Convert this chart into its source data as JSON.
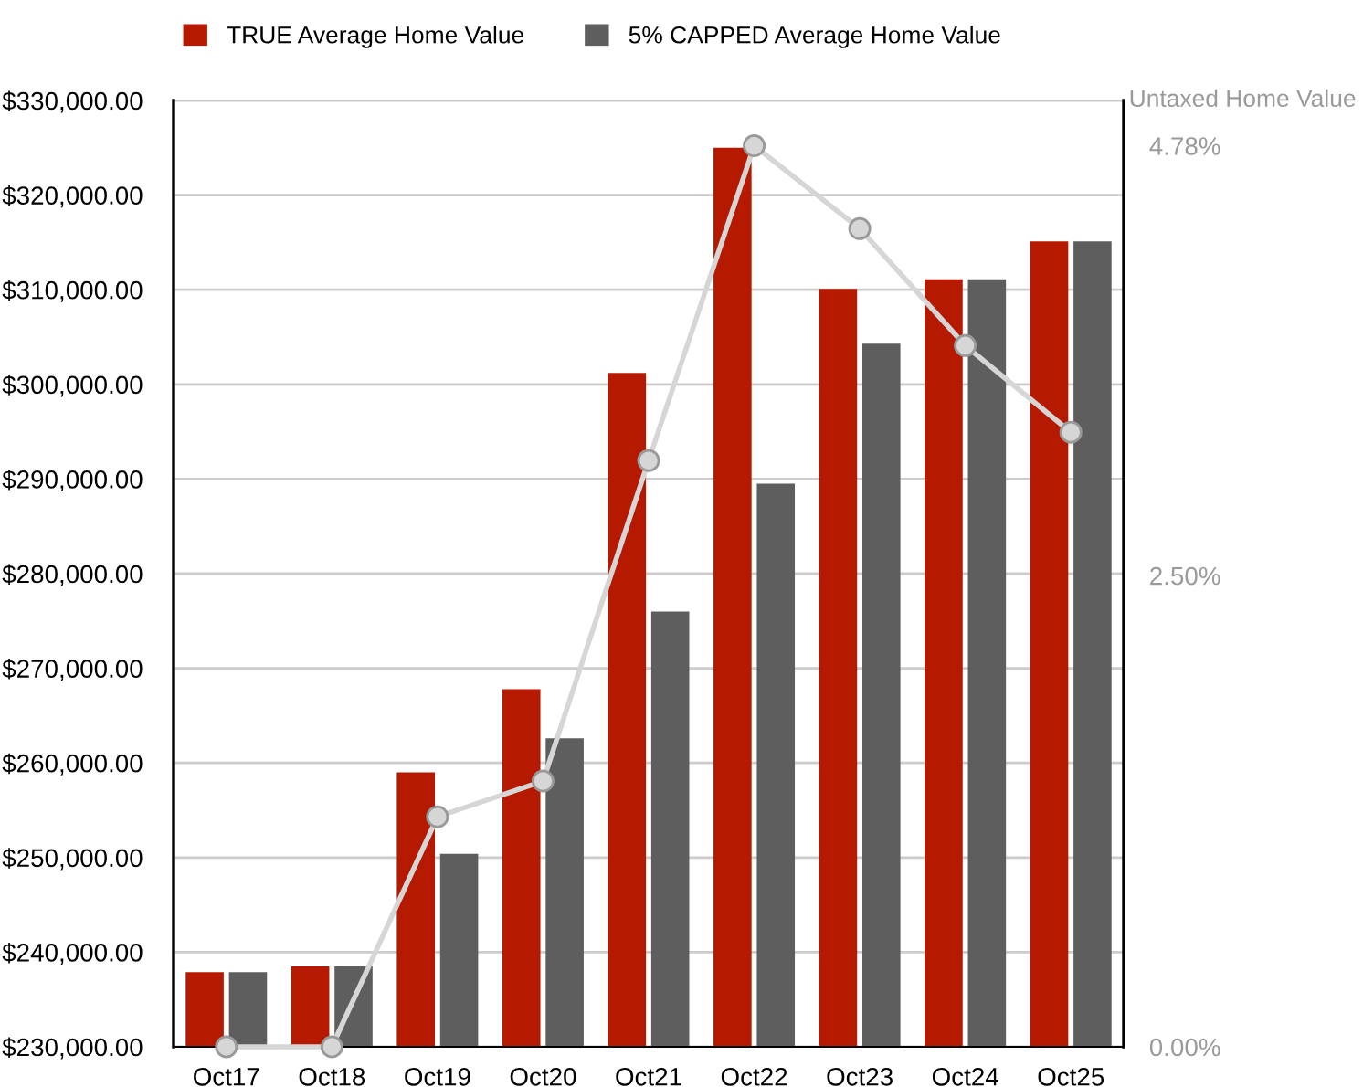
{
  "chart_data": {
    "type": "bar",
    "categories": [
      "Oct17",
      "Oct18",
      "Oct19",
      "Oct20",
      "Oct21",
      "Oct22",
      "Oct23",
      "Oct24",
      "Oct25"
    ],
    "series": [
      {
        "name": "TRUE Average Home Value",
        "color": "#b51a00",
        "values": [
          237900,
          238500,
          259000,
          267800,
          301200,
          325000,
          310100,
          311100,
          315100
        ]
      },
      {
        "name": "5% CAPPED Average Home Value",
        "color": "#5e5e5e",
        "values": [
          237900,
          238500,
          250400,
          262600,
          276000,
          289500,
          304300,
          311100,
          315100
        ]
      },
      {
        "type": "line",
        "axis": "y2",
        "color": "#d6d6d6",
        "marker": "circle",
        "values": [
          0,
          0,
          1.22,
          1.41,
          3.11,
          4.78,
          4.34,
          3.72,
          3.26
        ]
      }
    ],
    "y2label": "Untaxed Home Value",
    "ylim": [
      230000,
      330000
    ],
    "yticks": [
      {
        "value": 230000,
        "label": "$230,000.00"
      },
      {
        "value": 240000,
        "label": "$240,000.00"
      },
      {
        "value": 250000,
        "label": "$250,000.00"
      },
      {
        "value": 260000,
        "label": "$260,000.00"
      },
      {
        "value": 270000,
        "label": "$270,000.00"
      },
      {
        "value": 280000,
        "label": "$280,000.00"
      },
      {
        "value": 290000,
        "label": "$290,000.00"
      },
      {
        "value": 300000,
        "label": "$300,000.00"
      },
      {
        "value": 310000,
        "label": "$310,000.00"
      },
      {
        "value": 320000,
        "label": "$320,000.00"
      },
      {
        "value": 330000,
        "label": "$330,000.00"
      }
    ],
    "y2lim": [
      0,
      5.02
    ],
    "y2ticks": [
      {
        "value": 0,
        "label": "0.00%"
      },
      {
        "value": 2.5,
        "label": "2.50%"
      },
      {
        "value": 4.78,
        "label": "4.78%"
      }
    ],
    "grid": "y",
    "legend": "top left"
  }
}
